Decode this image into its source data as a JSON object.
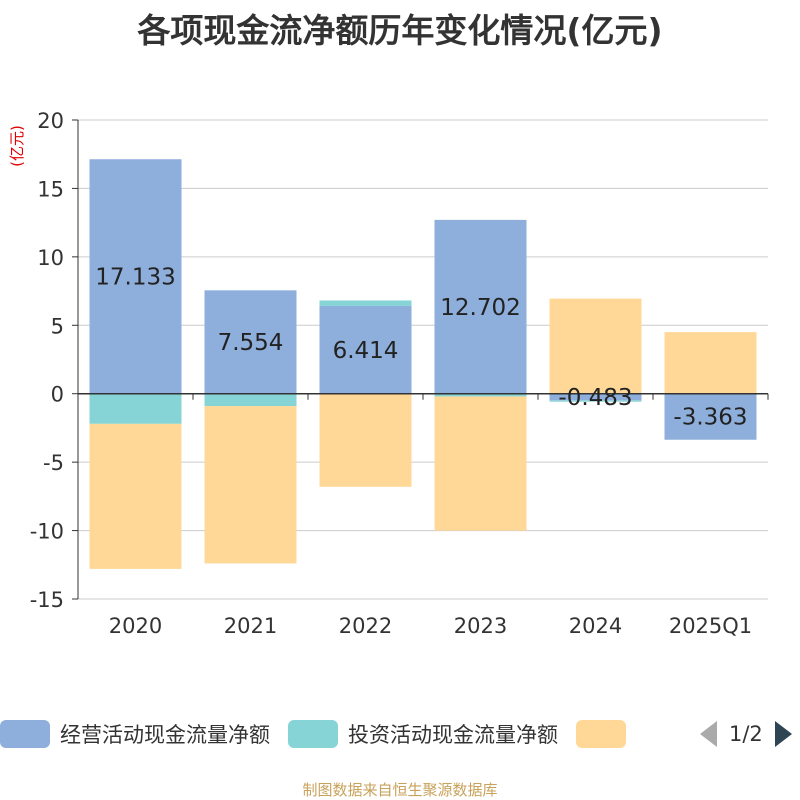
{
  "title": "各项现金流净额历年变化情况(亿元)",
  "source": "制图数据来自恒生聚源数据库",
  "legend_page": "1/2",
  "chart_data": {
    "type": "bar",
    "stacked": true,
    "unit_label": "(亿元)",
    "categories": [
      "2020",
      "2021",
      "2022",
      "2023",
      "2024",
      "2025Q1"
    ],
    "ylim": [
      -15,
      20
    ],
    "yticks": [
      20,
      15,
      10,
      5,
      0,
      -5,
      -10,
      -15
    ],
    "grid": true,
    "legend_position": "bottom",
    "series": [
      {
        "name": "经营活动现金流量净额",
        "color": "#8eaedb",
        "values": [
          17.133,
          7.554,
          6.414,
          12.702,
          -0.483,
          -3.363
        ],
        "labels": [
          "17.133",
          "7.554",
          "6.414",
          "12.702",
          "-0.483",
          "-3.363"
        ]
      },
      {
        "name": "投资活动现金流量净额",
        "color": "#86d4d6",
        "values": [
          -2.2,
          -0.9,
          0.4,
          -0.2,
          -0.1,
          0
        ]
      },
      {
        "name": "",
        "color": "#ffd898",
        "values": [
          -10.6,
          -11.5,
          -6.8,
          -9.8,
          6.95,
          4.5
        ]
      }
    ]
  }
}
